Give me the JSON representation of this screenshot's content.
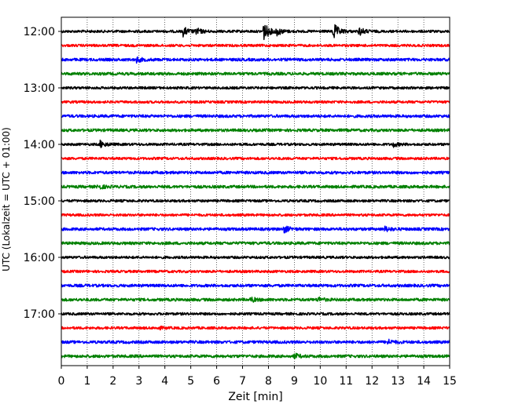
{
  "chart_data": {
    "type": "line",
    "title": "",
    "xlabel": "Zeit  [min]",
    "ylabel": "UTC (Lokalzeit = UTC + 01:00)",
    "xlim": [
      0,
      15
    ],
    "x_ticks": [
      0,
      1,
      2,
      3,
      4,
      5,
      6,
      7,
      8,
      9,
      10,
      11,
      12,
      13,
      14,
      15
    ],
    "x_tick_labels": [
      "0",
      "1",
      "2",
      "3",
      "4",
      "5",
      "6",
      "7",
      "8",
      "9",
      "10",
      "11",
      "12",
      "13",
      "14",
      "15"
    ],
    "y_tick_labels": [
      "12:00",
      "13:00",
      "14:00",
      "15:00",
      "16:00",
      "17:00"
    ],
    "grid": "vertical dotted",
    "trace_minutes": 15,
    "trace_colors": [
      "#000000",
      "#ff0000",
      "#0000ff",
      "#008000"
    ],
    "series": [
      {
        "start": "12:00",
        "color": "#000000",
        "noise": 1.6,
        "events": [
          {
            "t": 4.7,
            "amp": 6
          },
          {
            "t": 5.2,
            "amp": 4
          },
          {
            "t": 7.8,
            "amp": 12
          },
          {
            "t": 8.3,
            "amp": 5
          },
          {
            "t": 10.5,
            "amp": 11
          },
          {
            "t": 11.5,
            "amp": 5
          }
        ]
      },
      {
        "start": "12:15",
        "color": "#ff0000",
        "noise": 1.6,
        "events": []
      },
      {
        "start": "12:30",
        "color": "#0000ff",
        "noise": 1.8,
        "events": [
          {
            "t": 2.9,
            "amp": 3
          }
        ]
      },
      {
        "start": "12:45",
        "color": "#008000",
        "noise": 1.8,
        "events": []
      },
      {
        "start": "13:00",
        "color": "#000000",
        "noise": 1.6,
        "events": []
      },
      {
        "start": "13:15",
        "color": "#ff0000",
        "noise": 1.6,
        "events": []
      },
      {
        "start": "13:30",
        "color": "#0000ff",
        "noise": 1.8,
        "events": []
      },
      {
        "start": "13:45",
        "color": "#008000",
        "noise": 1.8,
        "events": []
      },
      {
        "start": "14:00",
        "color": "#000000",
        "noise": 1.6,
        "events": [
          {
            "t": 1.5,
            "amp": 4
          },
          {
            "t": 12.8,
            "amp": 3
          }
        ]
      },
      {
        "start": "14:15",
        "color": "#ff0000",
        "noise": 1.6,
        "events": []
      },
      {
        "start": "14:30",
        "color": "#0000ff",
        "noise": 1.8,
        "events": []
      },
      {
        "start": "14:45",
        "color": "#008000",
        "noise": 1.8,
        "events": [
          {
            "t": 1.4,
            "amp": 3
          }
        ]
      },
      {
        "start": "15:00",
        "color": "#000000",
        "noise": 1.6,
        "events": []
      },
      {
        "start": "15:15",
        "color": "#ff0000",
        "noise": 1.6,
        "events": []
      },
      {
        "start": "15:30",
        "color": "#0000ff",
        "noise": 1.8,
        "events": [
          {
            "t": 8.6,
            "amp": 4
          },
          {
            "t": 12.5,
            "amp": 3
          }
        ]
      },
      {
        "start": "15:45",
        "color": "#008000",
        "noise": 1.8,
        "events": []
      },
      {
        "start": "16:00",
        "color": "#000000",
        "noise": 1.6,
        "events": []
      },
      {
        "start": "16:15",
        "color": "#ff0000",
        "noise": 1.6,
        "events": []
      },
      {
        "start": "16:30",
        "color": "#0000ff",
        "noise": 1.8,
        "events": []
      },
      {
        "start": "16:45",
        "color": "#008000",
        "noise": 1.8,
        "events": [
          {
            "t": 7.3,
            "amp": 3
          },
          {
            "t": 9.9,
            "amp": 3
          }
        ]
      },
      {
        "start": "17:00",
        "color": "#000000",
        "noise": 1.6,
        "events": []
      },
      {
        "start": "17:15",
        "color": "#ff0000",
        "noise": 1.6,
        "events": [
          {
            "t": 3.7,
            "amp": 2
          }
        ]
      },
      {
        "start": "17:30",
        "color": "#0000ff",
        "noise": 1.8,
        "events": [
          {
            "t": 12.6,
            "amp": 3
          }
        ]
      },
      {
        "start": "17:45",
        "color": "#008000",
        "noise": 1.8,
        "events": [
          {
            "t": 9.0,
            "amp": 3
          }
        ]
      }
    ]
  }
}
